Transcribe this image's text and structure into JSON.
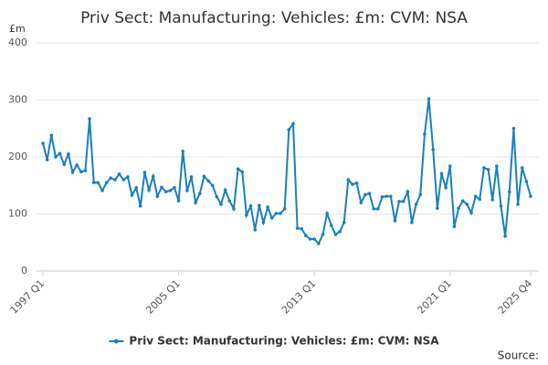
{
  "chart_data": {
    "type": "line",
    "title": "Priv Sect: Manufacturing: Vehicles: £m: CVM: NSA",
    "y_label": "£m",
    "source": "Source:",
    "legend": "bottom",
    "grid": true,
    "ylim": [
      0,
      400
    ],
    "yticks": [
      0,
      100,
      200,
      300,
      400
    ],
    "categories": [
      "1997 Q1",
      null,
      null,
      null,
      null,
      null,
      null,
      null,
      null,
      null,
      null,
      null,
      null,
      null,
      null,
      null,
      null,
      null,
      null,
      null,
      null,
      null,
      null,
      null,
      null,
      null,
      null,
      null,
      null,
      null,
      null,
      null,
      "2005 Q1",
      null,
      null,
      null,
      null,
      null,
      null,
      null,
      null,
      null,
      null,
      null,
      null,
      null,
      null,
      null,
      null,
      null,
      null,
      null,
      null,
      null,
      null,
      null,
      null,
      null,
      null,
      null,
      null,
      null,
      null,
      null,
      "2013 Q1",
      null,
      null,
      null,
      null,
      null,
      null,
      null,
      null,
      null,
      null,
      null,
      null,
      null,
      null,
      null,
      null,
      null,
      null,
      null,
      null,
      null,
      null,
      null,
      null,
      null,
      null,
      null,
      null,
      null,
      null,
      null,
      "2021 Q1",
      null,
      null,
      null,
      null,
      null,
      null,
      null,
      null,
      null,
      null,
      null,
      null,
      null,
      null,
      null,
      null,
      null,
      null,
      "2025 Q4"
    ],
    "series": [
      {
        "name": "Priv Sect: Manufacturing: Vehicles: £m: CVM: NSA",
        "color": "#1a80bb",
        "values": [
          224,
          195,
          238,
          200,
          206,
          187,
          205,
          173,
          186,
          174,
          176,
          267,
          155,
          155,
          141,
          155,
          163,
          160,
          170,
          160,
          165,
          133,
          146,
          114,
          173,
          142,
          166,
          131,
          147,
          139,
          141,
          146,
          123,
          210,
          141,
          165,
          120,
          136,
          166,
          158,
          150,
          130,
          117,
          142,
          123,
          109,
          179,
          174,
          98,
          114,
          72,
          115,
          85,
          112,
          93,
          101,
          101,
          109,
          248,
          258,
          75,
          74,
          62,
          56,
          56,
          48,
          64,
          101,
          80,
          64,
          69,
          85,
          160,
          152,
          154,
          120,
          134,
          136,
          109,
          109,
          130,
          131,
          131,
          88,
          122,
          122,
          139,
          85,
          117,
          134,
          240,
          302,
          213,
          110,
          171,
          146,
          184,
          78,
          110,
          123,
          117,
          102,
          131,
          126,
          181,
          178,
          125,
          184,
          114,
          61,
          139,
          250,
          117,
          181,
          157,
          131
        ]
      }
    ]
  }
}
